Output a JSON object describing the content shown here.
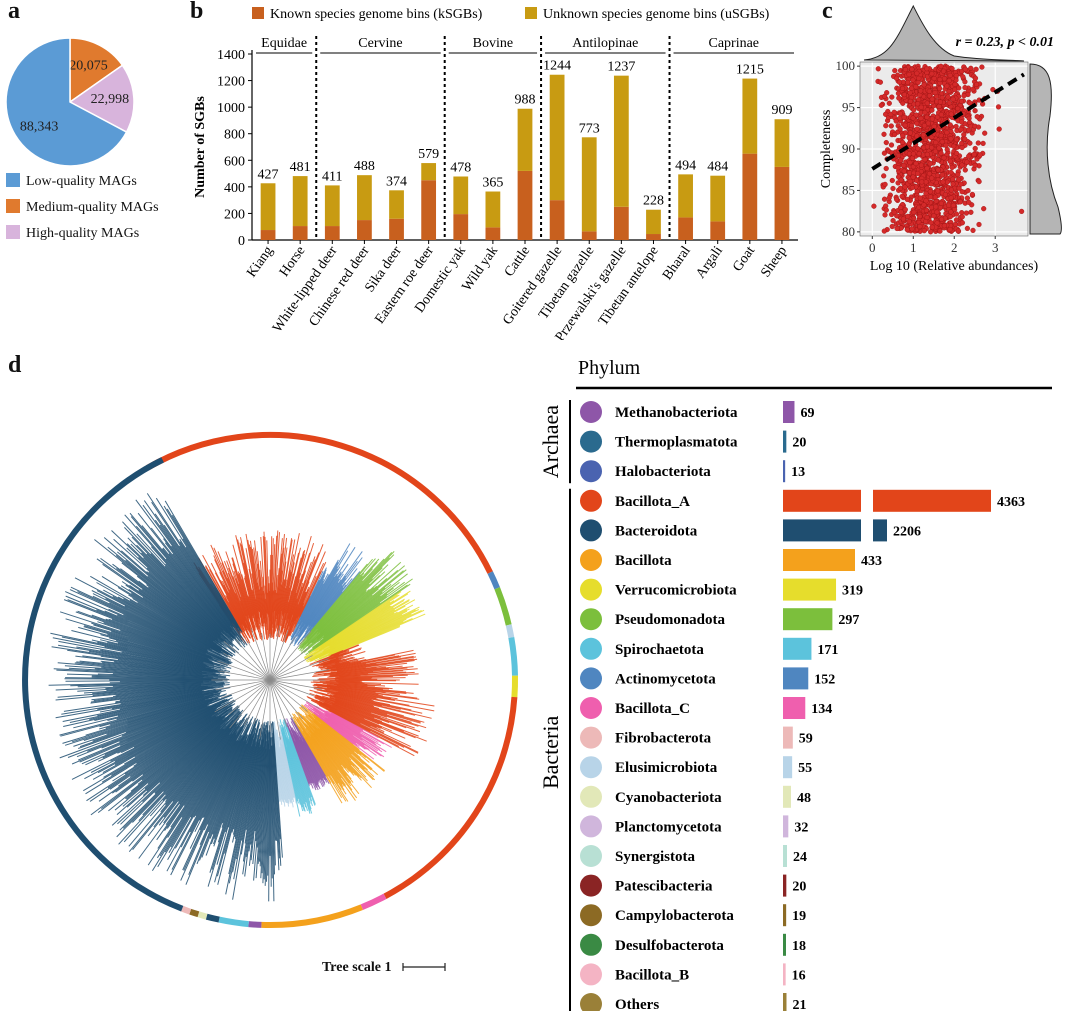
{
  "panels": {
    "a": "a",
    "b": "b",
    "c": "c",
    "d": "d"
  },
  "colors": {
    "low": "#5b9bd5",
    "medium": "#e07a2e",
    "high": "#d8b4dc",
    "known": "#c8601e",
    "unknown": "#c89b12",
    "scatter": "#d42a2a"
  },
  "chart_data": [
    {
      "id": "a",
      "type": "pie",
      "labels": [
        "Low-quality MAGs",
        "Medium-quality MAGs",
        "High-quality MAGs"
      ],
      "values": [
        88343,
        20075,
        22998
      ],
      "value_labels": [
        "88,343",
        "20,075",
        "22,998"
      ],
      "colors": [
        "#5b9bd5",
        "#e07a2e",
        "#d8b4dc"
      ],
      "legend_placement": "bottom"
    },
    {
      "id": "b",
      "type": "bar",
      "stacked": true,
      "legend": [
        "Known species genome bins (kSGBs)",
        "Unknown species genome bins (uSGBs)"
      ],
      "ylabel": "Number of SGBs",
      "ylim": [
        0,
        1400
      ],
      "yticks": [
        0,
        200,
        400,
        600,
        800,
        1000,
        1200,
        1400
      ],
      "categories": [
        "Kiang",
        "Horse",
        "White-lipped deer",
        "Chinese red deer",
        "Sika deer",
        "Eastern roe deer",
        "Domestic yak",
        "Wild yak",
        "Cattle",
        "Goitered gazelle",
        "Tibetan gazelle",
        "Przewalski's gazelle",
        "Tibetan antelope",
        "Bharal",
        "Argali",
        "Goat",
        "Sheep"
      ],
      "totals": [
        427,
        481,
        411,
        488,
        374,
        579,
        478,
        365,
        988,
        1244,
        773,
        1237,
        228,
        494,
        484,
        1215,
        909
      ],
      "series": [
        {
          "name": "Known species genome bins (kSGBs)",
          "values": [
            75,
            105,
            105,
            150,
            160,
            450,
            195,
            95,
            520,
            300,
            65,
            250,
            45,
            170,
            140,
            650,
            550
          ]
        },
        {
          "name": "Unknown species genome bins (uSGBs)",
          "values": [
            352,
            376,
            306,
            338,
            214,
            129,
            283,
            270,
            468,
            944,
            708,
            987,
            183,
            324,
            344,
            565,
            359
          ]
        }
      ],
      "groups": [
        {
          "name": "Equidae",
          "count": 2
        },
        {
          "name": "Cervine",
          "count": 4
        },
        {
          "name": "Bovine",
          "count": 3
        },
        {
          "name": "Antilopinae",
          "count": 4
        },
        {
          "name": "Caprinae",
          "count": 4
        }
      ]
    },
    {
      "id": "c",
      "type": "scatter",
      "annotation": "r = 0.23, p < 0.01",
      "xlabel": "Log 10 (Relative  abundances)",
      "ylabel": "Completeness",
      "xlim": [
        -0.3,
        3.8
      ],
      "ylim": [
        79.5,
        100.5
      ],
      "xticks": [
        0,
        1,
        2,
        3
      ],
      "yticks": [
        80,
        85,
        90,
        95,
        100
      ],
      "trend": {
        "x": [
          0,
          3.7
        ],
        "y": [
          87.6,
          99.0
        ]
      },
      "grid": true,
      "marginal_densities": true
    },
    {
      "id": "d",
      "type": "bar",
      "orientation": "horizontal",
      "title": "Phylum",
      "axis_break": true,
      "tree_scale_label": "Tree scale 1",
      "domains": [
        {
          "name": "Archaea",
          "count": 3
        },
        {
          "name": "Bacteria",
          "count": 18
        }
      ],
      "categories": [
        "Methanobacteriota",
        "Thermoplasmatota",
        "Halobacteriota",
        "Bacillota_A",
        "Bacteroidota",
        "Bacillota",
        "Verrucomicrobiota",
        "Pseudomonadota",
        "Spirochaetota",
        "Actinomycetota",
        "Bacillota_C",
        "Fibrobacterota",
        "Elusimicrobiota",
        "Cyanobacteriota",
        "Planctomycetota",
        "Synergistota",
        "Patescibacteria",
        "Campylobacterota",
        "Desulfobacterota",
        "Bacillota_B",
        "Others"
      ],
      "values": [
        69,
        20,
        13,
        4363,
        2206,
        433,
        319,
        297,
        171,
        152,
        134,
        59,
        55,
        48,
        32,
        24,
        20,
        19,
        18,
        16,
        21
      ],
      "colors": [
        "#8e56a8",
        "#2a6a8e",
        "#4a63b0",
        "#e2451a",
        "#1f4e70",
        "#f4a11c",
        "#e6dd2c",
        "#7cbf3c",
        "#5cc3dc",
        "#4f86c0",
        "#ef5fae",
        "#edb9b8",
        "#b8d4e8",
        "#e2e8b8",
        "#d0b6dc",
        "#b8e0d4",
        "#8a2424",
        "#8c6a24",
        "#3a8a44",
        "#f4b4c4",
        "#9a8038"
      ]
    }
  ]
}
